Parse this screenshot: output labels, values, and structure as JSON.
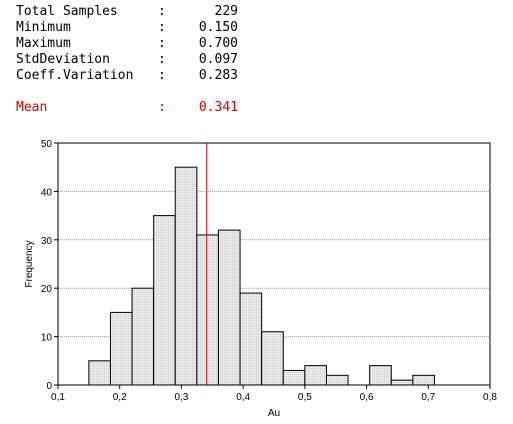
{
  "stats": [
    {
      "label": "Total Samples",
      "colon": ":",
      "value": "229"
    },
    {
      "label": "Minimum",
      "colon": ":",
      "value": "0.150"
    },
    {
      "label": "Maximum",
      "colon": ":",
      "value": "0.700"
    },
    {
      "label": "StdDeviation",
      "colon": ":",
      "value": "0.097"
    },
    {
      "label": "Coeff.Variation",
      "colon": ":",
      "value": "0.283"
    }
  ],
  "mean": {
    "label": "Mean",
    "colon": ":",
    "value": "0.341",
    "color": "#e00000"
  },
  "chart_data": {
    "type": "bar",
    "subtype": "histogram",
    "xlabel": "Au",
    "ylabel": "Frequency",
    "xlim": [
      0.1,
      0.8
    ],
    "ylim": [
      0,
      50
    ],
    "x_tick_labels": [
      "0,1",
      "0,2",
      "0,3",
      "0,4",
      "0,5",
      "0,6",
      "0,7",
      "0,8"
    ],
    "x_ticks": [
      0.1,
      0.2,
      0.3,
      0.4,
      0.5,
      0.6,
      0.7,
      0.8
    ],
    "y_tick_labels": [
      "0",
      "10",
      "20",
      "30",
      "40",
      "50"
    ],
    "y_ticks": [
      0,
      10,
      20,
      30,
      40,
      50
    ],
    "bin_width": 0.035,
    "bins": [
      {
        "start": 0.15,
        "value": 5
      },
      {
        "start": 0.185,
        "value": 15
      },
      {
        "start": 0.22,
        "value": 20
      },
      {
        "start": 0.255,
        "value": 35
      },
      {
        "start": 0.29,
        "value": 45
      },
      {
        "start": 0.325,
        "value": 31
      },
      {
        "start": 0.36,
        "value": 32
      },
      {
        "start": 0.395,
        "value": 19
      },
      {
        "start": 0.43,
        "value": 11
      },
      {
        "start": 0.465,
        "value": 3
      },
      {
        "start": 0.5,
        "value": 4
      },
      {
        "start": 0.535,
        "value": 2
      },
      {
        "start": 0.57,
        "value": 0
      },
      {
        "start": 0.605,
        "value": 4
      },
      {
        "start": 0.64,
        "value": 1
      },
      {
        "start": 0.675,
        "value": 2
      }
    ],
    "mean_line": 0.341,
    "mean_line_color": "#e00000",
    "bar_fill": "#e6e6e6",
    "gridlines": "horizontal dotted"
  }
}
